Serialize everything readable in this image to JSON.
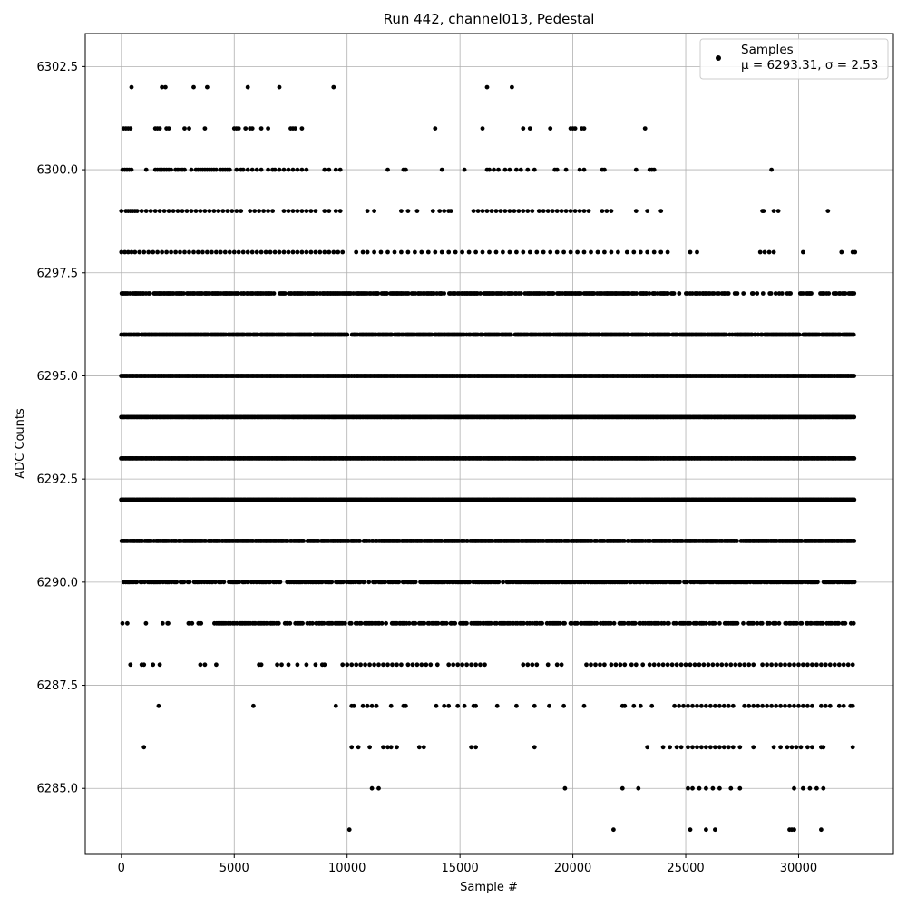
{
  "chart_data": {
    "type": "scatter",
    "title": "Run 442, channel013, Pedestal",
    "xlabel": "Sample #",
    "ylabel": "ADC Counts",
    "xlim": [
      -1600,
      34200
    ],
    "ylim": [
      6283.4,
      6303.3
    ],
    "x_ticks": [
      0,
      5000,
      10000,
      15000,
      20000,
      25000,
      30000
    ],
    "y_ticks": [
      6285.0,
      6287.5,
      6290.0,
      6292.5,
      6295.0,
      6297.5,
      6300.0,
      6302.5
    ],
    "grid": true,
    "legend_position": "top-right",
    "marker_color": "#000000",
    "series": [
      {
        "name": "Samples",
        "stats_label": "μ = 6293.31, σ = 2.53",
        "bands": [
          {
            "y": 6302,
            "x": [
              450,
              1800,
              1950,
              3200,
              3800,
              5600,
              7000,
              9400,
              16200,
              17300
            ]
          },
          {
            "y": 6301,
            "x": [
              100,
              200,
              300,
              400,
              1500,
              1600,
              1700,
              2000,
              2100,
              2800,
              3000,
              3700,
              5000,
              5100,
              5200,
              5500,
              5700,
              5800,
              6200,
              6500,
              7500,
              7600,
              7700,
              8000,
              13900,
              16000,
              17800,
              18100,
              19000,
              19900,
              20000,
              20100,
              20400,
              20500,
              23200
            ]
          },
          {
            "y": 6300,
            "x": [
              50,
              150,
              250,
              350,
              450,
              1100,
              1500,
              1600,
              1700,
              1800,
              1900,
              2000,
              2100,
              2200,
              2400,
              2500,
              2600,
              2700,
              2800,
              3100,
              3300,
              3400,
              3500,
              3600,
              3700,
              3800,
              3900,
              4000,
              4100,
              4200,
              4400,
              4500,
              4600,
              4700,
              4800,
              5100,
              5300,
              5400,
              5600,
              5800,
              6000,
              6200,
              6500,
              6700,
              6800,
              7000,
              7200,
              7400,
              7600,
              7800,
              8000,
              8200,
              9000,
              9200,
              9500,
              9700,
              11800,
              12500,
              12600,
              14200,
              15200,
              16200,
              16300,
              16500,
              16700,
              17000,
              17200,
              17500,
              17700,
              18000,
              18300,
              19200,
              19300,
              19700,
              20300,
              20500,
              21300,
              21400,
              22800,
              23400,
              23500,
              23600,
              28800
            ]
          },
          {
            "y": 6299,
            "x": [
              0,
              200,
              300,
              400,
              500,
              600,
              700,
              900,
              1100,
              1300,
              1500,
              1700,
              1900,
              2100,
              2300,
              2500,
              2700,
              2900,
              3100,
              3300,
              3500,
              3700,
              3900,
              4100,
              4300,
              4500,
              4700,
              4900,
              5100,
              5300,
              5700,
              5900,
              6100,
              6300,
              6500,
              6700,
              7200,
              7400,
              7600,
              7800,
              8000,
              8200,
              8400,
              8600,
              9000,
              9200,
              9500,
              9700,
              10900,
              11200,
              12400,
              12700,
              13100,
              13800,
              14100,
              14300,
              14500,
              14600,
              15600,
              15800,
              16000,
              16200,
              16400,
              16600,
              16800,
              17000,
              17200,
              17400,
              17600,
              17800,
              18000,
              18200,
              18500,
              18700,
              18900,
              19100,
              19300,
              19500,
              19700,
              19900,
              20100,
              20300,
              20500,
              20700,
              21300,
              21500,
              21700,
              22800,
              23300,
              23900,
              28400,
              28450,
              28900,
              29100,
              31300
            ]
          },
          {
            "y": 6298,
            "x": [
              0,
              150,
              300,
              450,
              600,
              800,
              1000,
              1200,
              1400,
              1600,
              1800,
              2000,
              2200,
              2400,
              2600,
              2800,
              3000,
              3200,
              3400,
              3600,
              3800,
              4000,
              4200,
              4400,
              4600,
              4800,
              5000,
              5200,
              5400,
              5600,
              5800,
              6000,
              6200,
              6400,
              6600,
              6800,
              7000,
              7200,
              7400,
              7600,
              7800,
              8000,
              8200,
              8400,
              8600,
              8800,
              9000,
              9200,
              9400,
              9600,
              9800,
              10400,
              10700,
              10900,
              11200,
              11500,
              11800,
              12100,
              12400,
              12700,
              13000,
              13300,
              13600,
              13900,
              14200,
              14500,
              14800,
              15100,
              15400,
              15700,
              16000,
              16300,
              16600,
              16900,
              17200,
              17500,
              17800,
              18100,
              18400,
              18700,
              19000,
              19300,
              19600,
              19900,
              20200,
              20500,
              20800,
              21100,
              21400,
              21700,
              22000,
              22400,
              22700,
              23000,
              23300,
              23600,
              23900,
              24200,
              25200,
              25500,
              28300,
              28500,
              28700,
              28900,
              30200,
              31900,
              32400,
              32500
            ]
          },
          {
            "y": 6297,
            "x_range": [
              0,
              32500
            ],
            "gap_after": 24500,
            "density": 0.8
          },
          {
            "y": 6296,
            "x_range": [
              0,
              32500
            ],
            "density": 0.9
          },
          {
            "y": 6295,
            "x_range": [
              0,
              32500
            ],
            "density": 1.0
          },
          {
            "y": 6294,
            "x_range": [
              0,
              32500
            ],
            "density": 1.0
          },
          {
            "y": 6293,
            "x_range": [
              0,
              32500
            ],
            "density": 1.0
          },
          {
            "y": 6292,
            "x_range": [
              0,
              32500
            ],
            "density": 1.0
          },
          {
            "y": 6291,
            "x_range": [
              0,
              32500
            ],
            "density": 0.9
          },
          {
            "y": 6290,
            "x_range": [
              200,
              32500
            ],
            "density": 0.75,
            "extra_x": [
              100
            ]
          },
          {
            "y": 6289,
            "x_range": [
              0,
              32500
            ],
            "density": 0.6,
            "sparse_before": 4000
          },
          {
            "y": 6288,
            "x": [
              400,
              900,
              1000,
              1400,
              1700,
              3500,
              3700,
              4200,
              6100,
              6200,
              6900,
              7100,
              7400,
              7800,
              8200,
              8600,
              8900,
              9000,
              9800,
              10000,
              10200,
              10400,
              10600,
              10800,
              11000,
              11200,
              11400,
              11600,
              11800,
              12000,
              12200,
              12400,
              12700,
              12900,
              13100,
              13300,
              13500,
              13700,
              14000,
              14500,
              14700,
              14900,
              15100,
              15300,
              15500,
              15700,
              15900,
              16100,
              17800,
              18000,
              18200,
              18400,
              18900,
              19300,
              19500,
              20600,
              20800,
              21000,
              21200,
              21400,
              21700,
              21900,
              22100,
              22300,
              22600,
              22800,
              23100,
              23400,
              23600,
              23800,
              24000,
              24200,
              24400,
              24600,
              24800,
              25000,
              25200,
              25400,
              25600,
              25800,
              26000,
              26200,
              26400,
              26600,
              26800,
              27000,
              27200,
              27400,
              27600,
              27800,
              28000,
              28400,
              28600,
              28800,
              29000,
              29200,
              29400,
              29600,
              29800,
              30000,
              30200,
              30400,
              30600,
              30800,
              31000,
              31200,
              31400,
              31600,
              31800,
              32000,
              32200,
              32400
            ]
          },
          {
            "y": 6287,
            "x": [
              1650,
              5850,
              9500,
              10200,
              10300,
              10700,
              10900,
              11100,
              11300,
              11950,
              12500,
              12600,
              13950,
              14300,
              14500,
              14900,
              15200,
              15600,
              15700,
              16650,
              17500,
              18300,
              18950,
              19600,
              20500,
              22200,
              22300,
              22700,
              23000,
              23500,
              24500,
              24700,
              24900,
              25100,
              25300,
              25500,
              25700,
              25900,
              26100,
              26300,
              26500,
              26700,
              26900,
              27100,
              27600,
              27800,
              28000,
              28200,
              28400,
              28600,
              28800,
              29000,
              29200,
              29400,
              29600,
              29800,
              30000,
              30200,
              30400,
              30600,
              31000,
              31200,
              31400,
              31800,
              32000,
              32300,
              32400
            ]
          },
          {
            "y": 6286,
            "x": [
              1000,
              10200,
              10500,
              11000,
              11600,
              11800,
              11950,
              12200,
              13200,
              13400,
              15500,
              15700,
              18300,
              23300,
              24000,
              24300,
              24600,
              24800,
              25100,
              25300,
              25500,
              25700,
              25900,
              26100,
              26300,
              26500,
              26700,
              26900,
              27100,
              27400,
              28000,
              28900,
              29200,
              29500,
              29700,
              29900,
              30100,
              30400,
              30600,
              31000,
              31100,
              32400
            ]
          },
          {
            "y": 6285,
            "x": [
              11100,
              11400,
              19650,
              22200,
              22900,
              25100,
              25300,
              25600,
              25900,
              26200,
              26500,
              27000,
              27400,
              29800,
              30200,
              30500,
              30800,
              31100
            ]
          },
          {
            "y": 6284,
            "x": [
              10100,
              21800,
              25200,
              25900,
              26300,
              29600,
              29700,
              29800,
              31000
            ]
          }
        ]
      }
    ]
  }
}
